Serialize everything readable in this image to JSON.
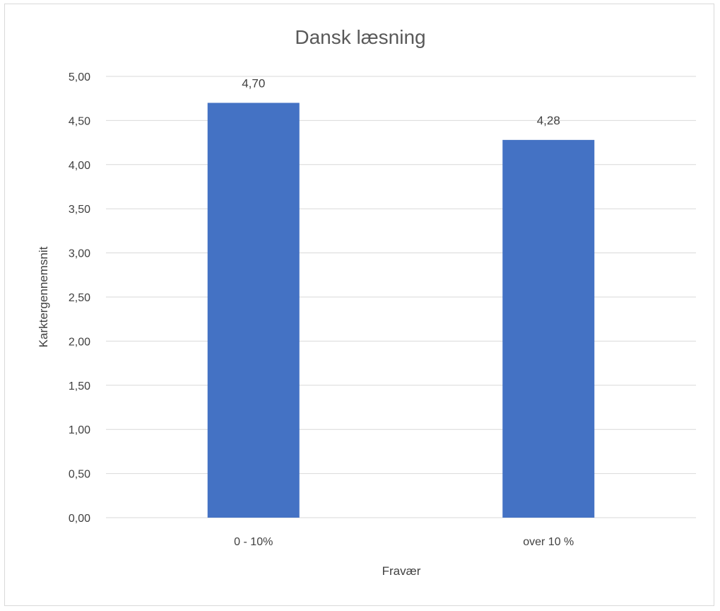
{
  "chart_data": {
    "type": "bar",
    "title": "Dansk læsning",
    "xlabel": "Fravær",
    "ylabel": "Karktergennemsnit",
    "categories": [
      "0 - 10%",
      "over 10 %"
    ],
    "values": [
      4.7,
      4.28
    ],
    "data_labels": [
      "4,70",
      "4,28"
    ],
    "ylim": [
      0,
      5
    ],
    "y_ticks": [
      {
        "value": 0,
        "label": "0,00"
      },
      {
        "value": 0.5,
        "label": "0,50"
      },
      {
        "value": 1,
        "label": "1,00"
      },
      {
        "value": 1.5,
        "label": "1,50"
      },
      {
        "value": 2,
        "label": "2,00"
      },
      {
        "value": 2.5,
        "label": "2,50"
      },
      {
        "value": 3,
        "label": "3,00"
      },
      {
        "value": 3.5,
        "label": "3,50"
      },
      {
        "value": 4,
        "label": "4,00"
      },
      {
        "value": 4.5,
        "label": "4,50"
      },
      {
        "value": 5,
        "label": "5,00"
      }
    ],
    "grid": true,
    "bar_color": "#4472c4"
  }
}
